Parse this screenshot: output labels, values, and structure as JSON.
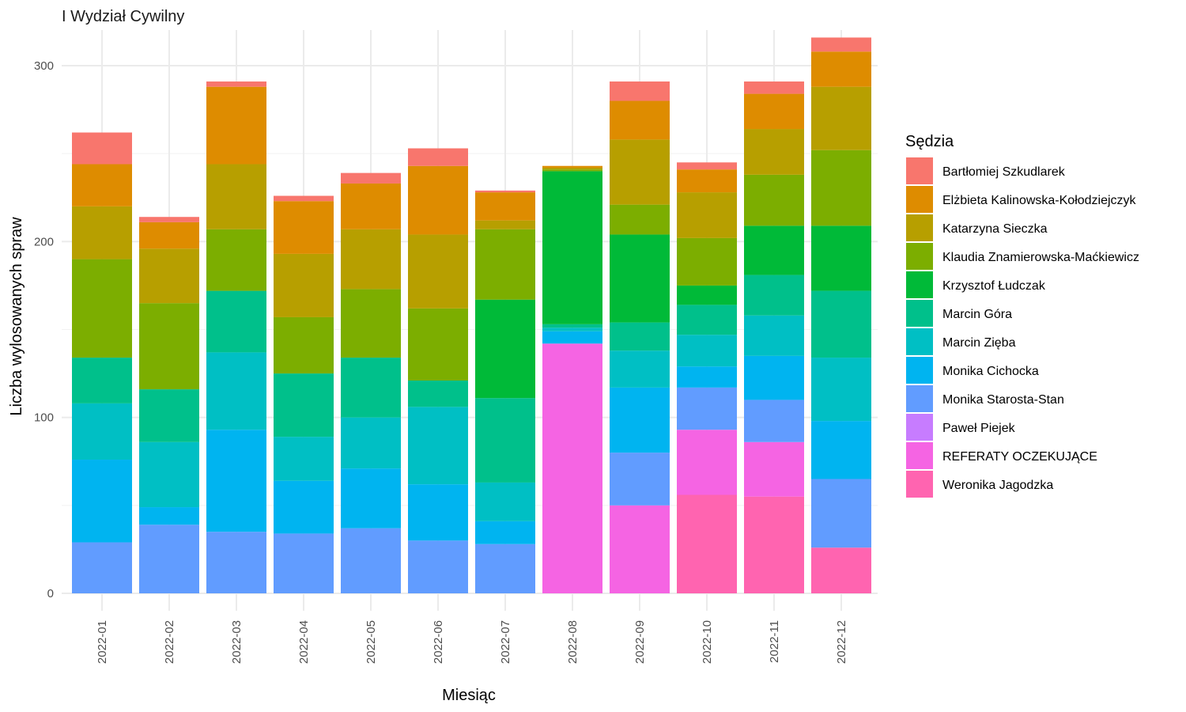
{
  "chart_data": {
    "type": "bar",
    "stacked": true,
    "title": "I Wydział Cywilny",
    "xlabel": "Miesiąc",
    "ylabel": "Liczba wylosowanych spraw",
    "ylim": [
      0,
      320
    ],
    "y_ticks": [
      0,
      100,
      200,
      300
    ],
    "grid": true,
    "legend_title": "Sędzia",
    "legend_position": "right",
    "categories": [
      "2022-01",
      "2022-02",
      "2022-03",
      "2022-04",
      "2022-05",
      "2022-06",
      "2022-07",
      "2022-08",
      "2022-09",
      "2022-10",
      "2022-11",
      "2022-12"
    ],
    "series": [
      {
        "name": "Bartłomiej Szkudlarek",
        "color": "#F8766D",
        "values": [
          18,
          3,
          3,
          3,
          6,
          10,
          1,
          0,
          11,
          4,
          7,
          8
        ]
      },
      {
        "name": "Elżbieta Kalinowska-Kołodziejczyk",
        "color": "#DE8C00",
        "values": [
          24,
          15,
          44,
          30,
          26,
          39,
          16,
          1,
          22,
          13,
          20,
          20
        ]
      },
      {
        "name": "Katarzyna Sieczka",
        "color": "#B79F00",
        "values": [
          30,
          31,
          37,
          36,
          34,
          42,
          5,
          1,
          37,
          26,
          26,
          36
        ]
      },
      {
        "name": "Klaudia Znamierowska-Maćkiewicz",
        "color": "#7CAE00",
        "values": [
          56,
          49,
          35,
          32,
          39,
          41,
          40,
          1,
          17,
          27,
          29,
          43
        ]
      },
      {
        "name": "Krzysztof Łudczak",
        "color": "#00BA38",
        "values": [
          0,
          0,
          0,
          0,
          0,
          0,
          56,
          87,
          50,
          11,
          28,
          37
        ]
      },
      {
        "name": "Marcin Góra",
        "color": "#00C08B",
        "values": [
          26,
          30,
          35,
          36,
          34,
          15,
          48,
          2,
          16,
          17,
          23,
          38
        ]
      },
      {
        "name": "Marcin Zięba",
        "color": "#00BFC4",
        "values": [
          32,
          37,
          44,
          25,
          29,
          44,
          22,
          2,
          21,
          18,
          23,
          36
        ]
      },
      {
        "name": "Monika Cichocka",
        "color": "#00B4F0",
        "values": [
          47,
          10,
          58,
          30,
          34,
          32,
          13,
          7,
          37,
          12,
          25,
          33
        ]
      },
      {
        "name": "Monika Starosta-Stan",
        "color": "#619CFF",
        "values": [
          29,
          39,
          35,
          34,
          37,
          30,
          28,
          0,
          30,
          24,
          24,
          39
        ]
      },
      {
        "name": "Paweł Piejek",
        "color": "#C77CFF",
        "values": [
          0,
          0,
          0,
          0,
          0,
          0,
          0,
          0,
          0,
          0,
          0,
          0
        ]
      },
      {
        "name": "REFERATY OCZEKUJĄCE",
        "color": "#F564E3",
        "values": [
          0,
          0,
          0,
          0,
          0,
          0,
          0,
          142,
          50,
          37,
          31,
          0
        ]
      },
      {
        "name": "Weronika Jagodzka",
        "color": "#FF64B0",
        "values": [
          0,
          0,
          0,
          0,
          0,
          0,
          0,
          0,
          0,
          56,
          55,
          26
        ]
      }
    ]
  }
}
